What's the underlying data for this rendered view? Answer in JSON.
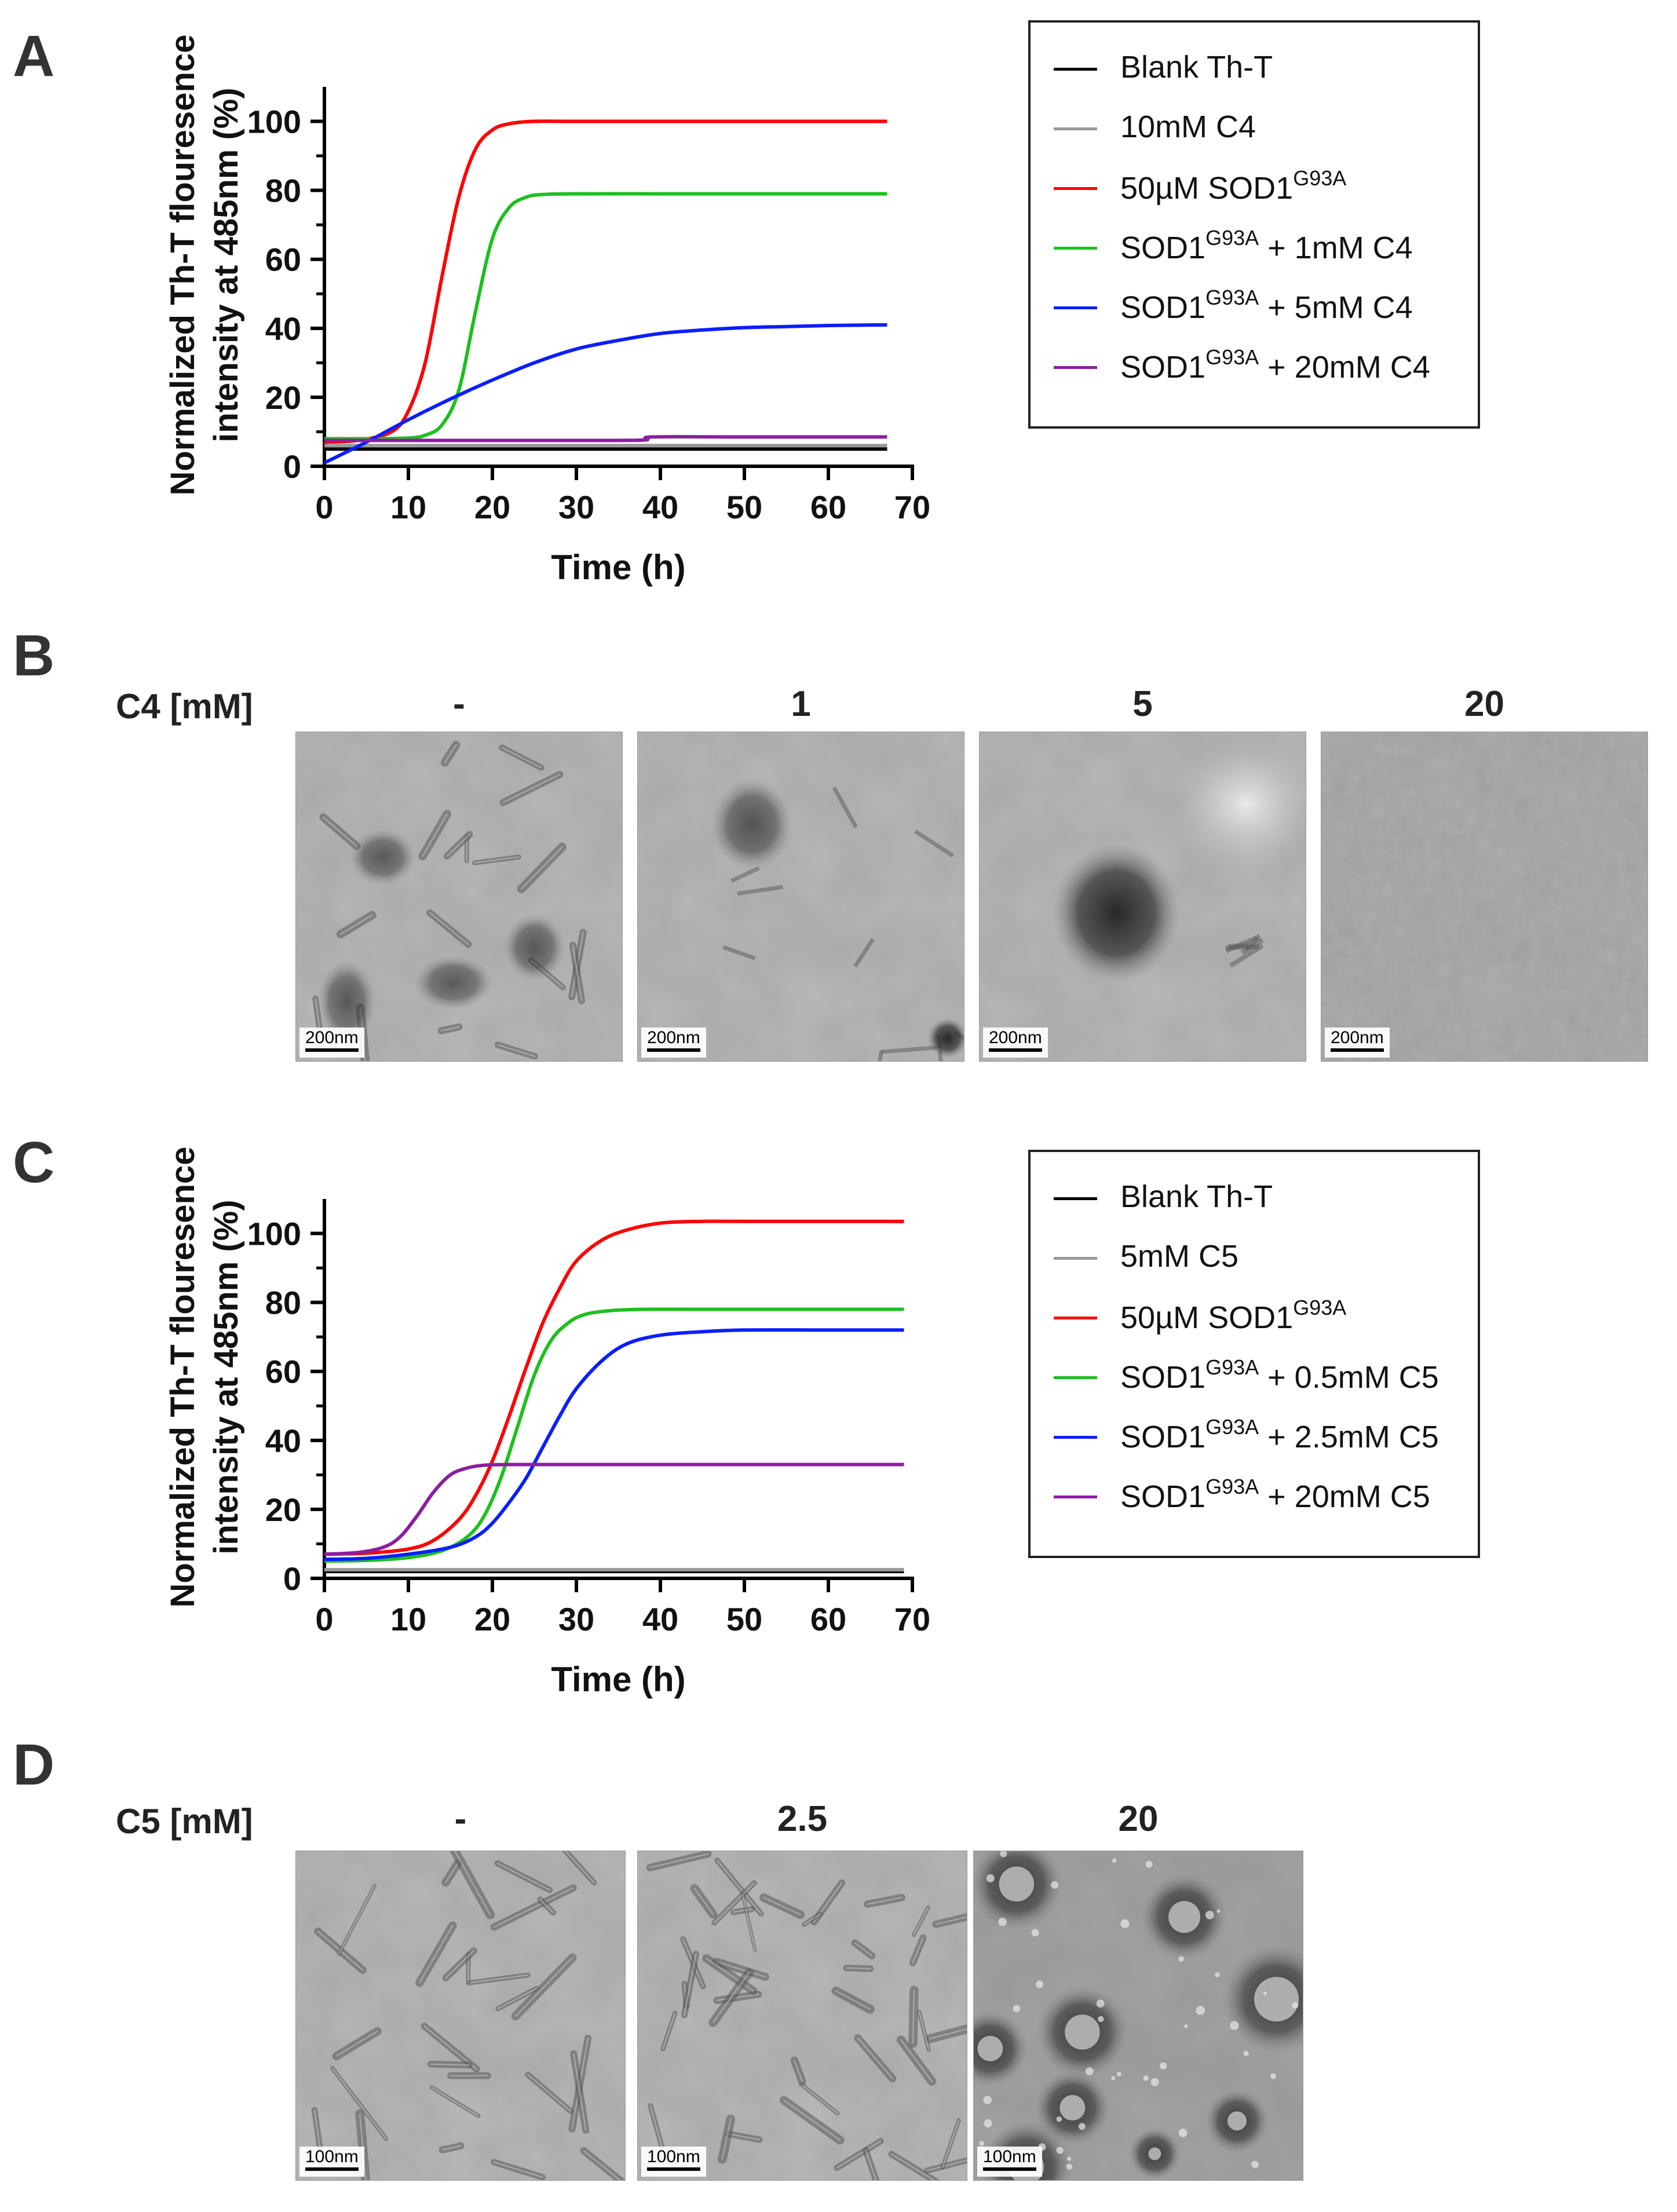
{
  "panels": {
    "a": "A",
    "b": "B",
    "c": "C",
    "d": "D"
  },
  "chart_data": [
    {
      "type": "line",
      "panel": "A",
      "xlabel": "Time (h)",
      "ylabel_line1": "Normalized Th-T flouresence",
      "ylabel_line2": "intensity at 485nm (%)",
      "xlim": [
        0,
        70
      ],
      "ylim": [
        0,
        110
      ],
      "xticks": [
        0,
        10,
        20,
        30,
        40,
        50,
        60,
        70
      ],
      "yticks": [
        0,
        20,
        40,
        60,
        80,
        100
      ],
      "grid": false,
      "legend_position": "right",
      "series": [
        {
          "name": "Blank Th-T",
          "label_main": "Blank Th-T",
          "label_sup": "",
          "label_tail": "",
          "color": "#000000",
          "x": [
            0,
            10,
            20,
            30,
            40,
            50,
            60,
            67
          ],
          "y": [
            5,
            5,
            5,
            5,
            5,
            5,
            5,
            5
          ]
        },
        {
          "name": "10mM C4",
          "label_main": "10mM C4",
          "label_sup": "",
          "label_tail": "",
          "color": "#999999",
          "x": [
            0,
            10,
            20,
            30,
            40,
            50,
            60,
            67
          ],
          "y": [
            6,
            6,
            6,
            6,
            6,
            6,
            6,
            6
          ]
        },
        {
          "name": "50µM SOD1G93A",
          "label_main": "50µM SOD1",
          "label_sup": "G93A",
          "label_tail": "",
          "color": "#ff0000",
          "x": [
            0,
            4,
            8,
            10,
            12,
            14,
            16,
            18,
            20,
            22,
            25,
            30,
            40,
            50,
            60,
            67
          ],
          "y": [
            7,
            7.5,
            10,
            16,
            30,
            55,
            78,
            92,
            97.5,
            99.3,
            100,
            100,
            100,
            100,
            100,
            100
          ]
        },
        {
          "name": "SOD1G93A + 1mM C4",
          "label_main": "SOD1",
          "label_sup": "G93A",
          "label_tail": " + 1mM C4",
          "color": "#1fbf1f",
          "x": [
            0,
            6,
            10,
            12,
            14,
            16,
            18,
            20,
            22,
            24,
            26,
            30,
            40,
            50,
            60,
            67
          ],
          "y": [
            8,
            8,
            8.2,
            9,
            12,
            22,
            45,
            66,
            75,
            78,
            78.8,
            79,
            79,
            79,
            79,
            79
          ]
        },
        {
          "name": "SOD1G93A + 5mM C4",
          "label_main": "SOD1",
          "label_sup": "G93A",
          "label_tail": " + 5mM C4",
          "color": "#0a1fff",
          "x": [
            0,
            5,
            10,
            15,
            20,
            25,
            30,
            35,
            40,
            45,
            50,
            55,
            60,
            67
          ],
          "y": [
            1,
            7,
            13.5,
            19.5,
            25,
            30,
            34,
            36.5,
            38.5,
            39.5,
            40.2,
            40.5,
            40.8,
            41
          ]
        },
        {
          "name": "SOD1G93A + 20mM C4",
          "label_main": "SOD1",
          "label_sup": "G93A",
          "label_tail": " + 20mM C4",
          "color": "#8a1fa0",
          "x": [
            0,
            10,
            20,
            30,
            38,
            39,
            50,
            60,
            67
          ],
          "y": [
            7.5,
            7.5,
            7.5,
            7.5,
            7.6,
            8.5,
            8.5,
            8.5,
            8.5
          ]
        }
      ]
    },
    {
      "type": "line",
      "panel": "C",
      "xlabel": "Time (h)",
      "ylabel_line1": "Normalized Th-T flouresence",
      "ylabel_line2": "intensity at 485nm (%)",
      "xlim": [
        0,
        70
      ],
      "ylim": [
        0,
        110
      ],
      "xticks": [
        0,
        10,
        20,
        30,
        40,
        50,
        60,
        70
      ],
      "yticks": [
        0,
        20,
        40,
        60,
        80,
        100
      ],
      "grid": false,
      "legend_position": "right",
      "series": [
        {
          "name": "Blank Th-T",
          "label_main": "Blank Th-T",
          "label_sup": "",
          "label_tail": "",
          "color": "#000000",
          "x": [
            0,
            10,
            20,
            30,
            40,
            50,
            60,
            69
          ],
          "y": [
            2,
            2,
            2,
            2,
            2,
            2,
            2,
            2
          ]
        },
        {
          "name": "5mM C5",
          "label_main": "5mM C5",
          "label_sup": "",
          "label_tail": "",
          "color": "#999999",
          "x": [
            0,
            10,
            20,
            30,
            40,
            50,
            60,
            69
          ],
          "y": [
            2.5,
            2.5,
            2.5,
            2.5,
            2.5,
            2.5,
            2.5,
            2.5
          ]
        },
        {
          "name": "50µM SOD1G93A",
          "label_main": "50µM SOD1",
          "label_sup": "G93A",
          "label_tail": "",
          "color": "#ff0000",
          "x": [
            0,
            5,
            10,
            13,
            16,
            18,
            20,
            22,
            24,
            26,
            28,
            30,
            33,
            36,
            40,
            45,
            50,
            60,
            69
          ],
          "y": [
            7,
            7.3,
            8.5,
            11,
            17,
            24,
            34,
            47,
            61,
            74,
            84,
            92,
            98,
            101,
            103,
            103.5,
            103.5,
            103.5,
            103.5
          ]
        },
        {
          "name": "SOD1G93A + 0.5mM C5",
          "label_main": "SOD1",
          "label_sup": "G93A",
          "label_tail": " + 0.5mM C5",
          "color": "#1fbf1f",
          "x": [
            0,
            5,
            10,
            14,
            17,
            19,
            21,
            23,
            25,
            27,
            29,
            31,
            34,
            38,
            45,
            50,
            60,
            69
          ],
          "y": [
            5,
            5.2,
            6,
            8,
            12,
            18,
            29,
            44,
            59,
            69,
            74,
            76.5,
            77.6,
            78,
            78,
            78,
            78,
            78
          ]
        },
        {
          "name": "SOD1G93A + 2.5mM C5",
          "label_main": "SOD1",
          "label_sup": "G93A",
          "label_tail": " + 2.5mM C5",
          "color": "#0a1fff",
          "x": [
            0,
            5,
            10,
            15,
            18,
            20,
            22,
            24,
            26,
            28,
            30,
            33,
            36,
            40,
            45,
            50,
            60,
            69
          ],
          "y": [
            5.5,
            5.8,
            7,
            9,
            12,
            16,
            22,
            29,
            38,
            47,
            55,
            63,
            68,
            70.5,
            71.5,
            72,
            72,
            72
          ]
        },
        {
          "name": "SOD1G93A + 20mM C5",
          "label_main": "SOD1",
          "label_sup": "G93A",
          "label_tail": " + 20mM C5",
          "color": "#8a1fa0",
          "x": [
            0,
            4,
            7,
            9,
            11,
            13,
            15,
            17,
            19,
            22,
            30,
            40,
            50,
            60,
            69
          ],
          "y": [
            7,
            7.5,
            9,
            12,
            18,
            25,
            30,
            32,
            32.8,
            33,
            33,
            33,
            33,
            33,
            33
          ]
        }
      ]
    }
  ],
  "tem_b": {
    "row_label": "C4 [mM]",
    "columns": [
      "-",
      "1",
      "5",
      "20"
    ],
    "scale": [
      "200nm",
      "200nm",
      "200nm",
      "200nm"
    ]
  },
  "tem_d": {
    "row_label": "C5 [mM]",
    "columns": [
      "-",
      "2.5",
      "20"
    ],
    "scale": [
      "100nm",
      "100nm",
      "100nm"
    ]
  }
}
